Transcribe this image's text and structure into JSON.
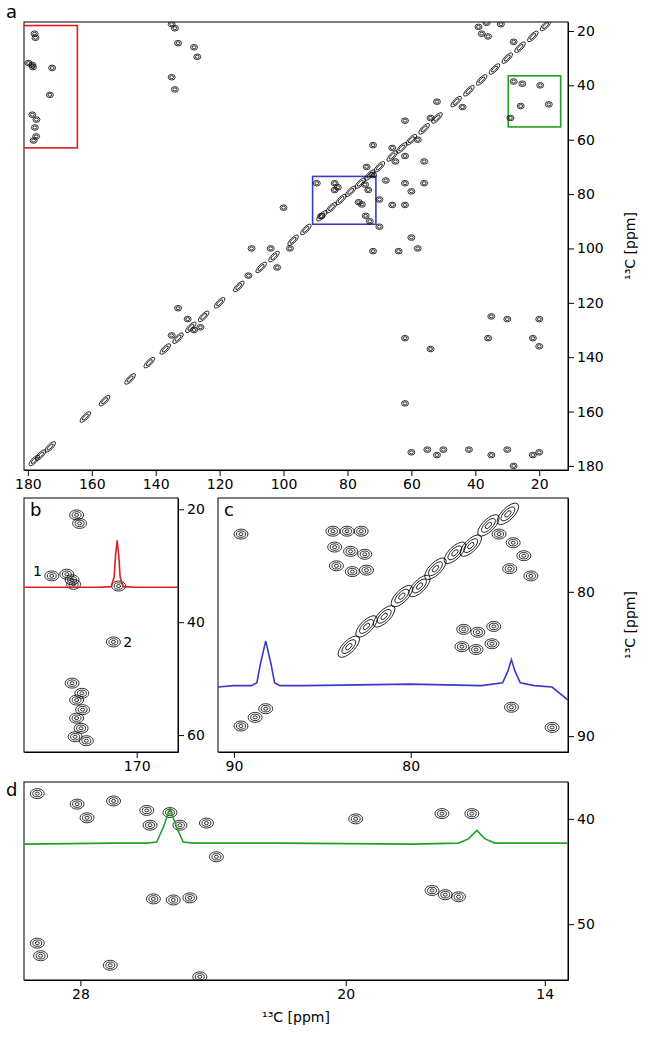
{
  "chart_data": [
    {
      "type": "contour",
      "title": "a",
      "ylabel": "¹³C [ppm]",
      "xlim": [
        181.2,
        11.0
      ],
      "ylim": [
        16.7,
        181.5
      ],
      "xticks": [
        180,
        160,
        140,
        120,
        100,
        80,
        60,
        40,
        20
      ],
      "yticks": [
        20,
        40,
        60,
        80,
        100,
        120,
        140,
        160,
        180
      ],
      "series": [
        {
          "type": "scatter",
          "marker": "contour",
          "color": "#000000",
          "x": [
            177.9,
            177.6,
            178.6,
            178.4,
            172.4,
            173.1,
            178.6,
            177.3,
            177.8,
            177.4,
            178.2,
            179.8,
            135,
            134,
            133,
            128,
            127,
            135,
            134,
            36.5,
            32,
            28,
            39,
            38,
            36,
            72,
            66,
            62,
            65,
            74,
            72,
            68,
            62,
            56,
            60,
            70,
            66,
            62,
            73,
            70,
            60,
            58,
            72,
            64,
            89.6,
            84,
            83,
            84,
            74.5,
            73.5,
            76.5,
            75.5,
            88.2,
            74.3,
            104,
            110,
            102,
            111,
            100,
            98,
            28,
            25.3,
            25.8,
            17,
            29,
            19.7,
            54,
            52,
            44,
            62,
            58,
            56,
            133,
            130,
            128,
            135,
            126,
            35,
            30,
            20,
            36,
            22,
            20,
            54,
            62,
            62,
            60,
            55,
            52,
            50,
            42,
            35,
            30,
            22,
            20,
            28
          ],
          "values": [
            21,
            22.5,
            32.5,
            33.3,
            33.6,
            43.5,
            50.8,
            52.6,
            55.5,
            58.8,
            60.3,
            31.8,
            17.5,
            19,
            24.5,
            26,
            29.5,
            37,
            41.5,
            17,
            17.5,
            24,
            18.5,
            21,
            22,
            62,
            63,
            66,
            68,
            70,
            73,
            75,
            76,
            76,
            79,
            82,
            84,
            84,
            90,
            92,
            96,
            100,
            101,
            101,
            76,
            76,
            77.5,
            78.5,
            76.5,
            78.5,
            83,
            83.8,
            88.1,
            88,
            100,
            100,
            107,
            110,
            85,
            100,
            38.6,
            39.4,
            47.6,
            47,
            52,
            40,
            52,
            46,
            48,
            53,
            60,
            68,
            122,
            126,
            130,
            132,
            129,
            125,
            126,
            126,
            133,
            133,
            136,
            137,
            133,
            157,
            175,
            174,
            176,
            174,
            174,
            176,
            174,
            176,
            175,
            180
          ]
        },
        {
          "type": "scatter",
          "marker": "ridge",
          "color": "#000000",
          "x": [
            18,
            22,
            26,
            30,
            34,
            38,
            42,
            46,
            52,
            56,
            60,
            63,
            66,
            70,
            73,
            76,
            79,
            82,
            85,
            88,
            93,
            97,
            103,
            107,
            114,
            120,
            125,
            129,
            133,
            137,
            142,
            148,
            156,
            162,
            173,
            176,
            178
          ],
          "values": [
            18,
            22,
            26,
            30,
            34,
            38,
            42,
            46,
            52,
            56,
            60,
            63,
            66,
            70,
            73,
            76,
            79,
            82,
            85,
            88,
            93,
            97,
            103,
            107,
            114,
            120,
            125,
            129,
            133,
            137,
            142,
            148,
            156,
            162,
            173,
            176,
            178
          ]
        }
      ],
      "regions": [
        {
          "color": "#e41a1c",
          "xlim": [
            185,
            164.5
          ],
          "ylim": [
            18,
            63
          ]
        },
        {
          "color": "#3a3ac8",
          "xlim": [
            90.9,
            71.1
          ],
          "ylim": [
            73.5,
            91.1
          ]
        },
        {
          "color": "#22a022",
          "xlim": [
            29.7,
            13.3
          ],
          "ylim": [
            36.5,
            55.3
          ]
        }
      ]
    },
    {
      "type": "contour",
      "title": "b",
      "xlim": [
        185,
        164.5
      ],
      "ylim": [
        18,
        63
      ],
      "xticks": [
        170
      ],
      "yticks": [
        20,
        40,
        60
      ],
      "series": [
        {
          "type": "scatter",
          "marker": "contour",
          "color": "#000000",
          "x": [
            178,
            177.6,
            179.3,
            178.6,
            178.4,
            172.4,
            173.1,
            178.6,
            177.3,
            178,
            177.2,
            178,
            177.4,
            178.2,
            176.7,
            181.3
          ],
          "values": [
            21,
            22.5,
            31.5,
            32.5,
            33.3,
            33.6,
            43.5,
            50.8,
            52.6,
            53.8,
            55.5,
            57,
            58.8,
            60.3,
            61,
            31.8
          ]
        },
        {
          "type": "line",
          "color": "#e41a1c",
          "x": [
            185,
            180,
            175,
            173.4,
            173,
            172.8,
            172.6,
            172.4,
            172.2,
            171.8,
            170,
            164.5
          ],
          "values": [
            33.8,
            33.8,
            33.8,
            33.7,
            32,
            28,
            25.5,
            28,
            32,
            33.7,
            33.8,
            33.8
          ]
        }
      ],
      "annotations": [
        {
          "text": "1",
          "x": 183.2,
          "y": 31.0
        },
        {
          "text": "2",
          "x": 171.2,
          "y": 43.5
        }
      ]
    },
    {
      "type": "contour",
      "title": "c",
      "ylabel": "¹³C [ppm]",
      "xlim": [
        90.9,
        71.1
      ],
      "ylim": [
        73.5,
        91.1
      ],
      "xticks": [
        90,
        80
      ],
      "yticks": [
        80,
        90
      ],
      "series": [
        {
          "type": "scatter",
          "marker": "contour",
          "color": "#000000",
          "x": [
            89.6,
            84.4,
            83.6,
            82.8,
            84.3,
            83.4,
            82.6,
            84.2,
            83.3,
            82.5,
            75.0,
            74.2,
            73.6,
            73.2,
            74.4,
            77.0,
            76.2,
            75.3,
            77.1,
            76.3,
            75.4,
            88.2,
            89.6,
            88.8,
            74.3,
            72.0
          ],
          "values": [
            76.0,
            75.8,
            75.8,
            75.8,
            76.9,
            77.2,
            77.4,
            78.2,
            78.6,
            78.5,
            76.0,
            76.6,
            77.5,
            78.9,
            78.4,
            82.6,
            82.8,
            82.4,
            83.8,
            84.0,
            83.6,
            88.1,
            89.3,
            88.7,
            88.0,
            89.4
          ]
        },
        {
          "type": "scatter",
          "marker": "ridge",
          "color": "#000000",
          "x": [
            83.5,
            82.5,
            81.5,
            80.5,
            79.5,
            78.6,
            77.5,
            76.6,
            75.6,
            74.5
          ],
          "values": [
            83.8,
            82.4,
            81.7,
            80.3,
            79.6,
            78.4,
            77.3,
            76.8,
            75.4,
            74.6
          ]
        },
        {
          "type": "line",
          "color": "#3a3ac8",
          "x": [
            90.9,
            90,
            89,
            88.7,
            88.5,
            88.2,
            87.9,
            87.7,
            87.4,
            86,
            80,
            76,
            74.8,
            74.5,
            74.3,
            74.1,
            73.8,
            73,
            72,
            71.1
          ],
          "values": [
            86.6,
            86.5,
            86.5,
            86.3,
            85.0,
            83.4,
            85.0,
            86.3,
            86.5,
            86.5,
            86.4,
            86.5,
            86.3,
            85.5,
            84.7,
            85.5,
            86.3,
            86.5,
            86.6,
            87.5
          ]
        }
      ]
    },
    {
      "type": "contour",
      "title": "d",
      "xlabel": "¹³C [ppm]",
      "xlim": [
        29.7,
        13.3
      ],
      "ylim": [
        36.5,
        55.3
      ],
      "xticks": [
        28,
        20,
        14
      ],
      "yticks": [
        40,
        50
      ],
      "series": [
        {
          "type": "scatter",
          "marker": "contour",
          "color": "#000000",
          "x": [
            29.3,
            28.1,
            27.8,
            27.0,
            26.0,
            25.3,
            25.0,
            25.9,
            24.2,
            19.7,
            17.1,
            16.2,
            23.9,
            25.8,
            25.2,
            24.7,
            17.4,
            17.0,
            16.6,
            29.3,
            29.2,
            27.1,
            24.4
          ],
          "values": [
            37.6,
            38.6,
            39.9,
            38.3,
            39.2,
            39.4,
            40.6,
            40.6,
            40.4,
            40.0,
            39.5,
            39.5,
            43.6,
            47.6,
            47.7,
            47.5,
            46.8,
            47.2,
            47.4,
            51.8,
            53.0,
            53.9,
            55.0
          ]
        },
        {
          "type": "line",
          "color": "#22a022",
          "x": [
            29.7,
            27,
            26,
            25.7,
            25.5,
            25.3,
            25.1,
            24.9,
            24.6,
            22,
            18,
            16.6,
            16.3,
            16.05,
            15.8,
            15.5,
            13.3
          ],
          "values": [
            42.4,
            42.3,
            42.3,
            42.2,
            40.8,
            39.0,
            40.8,
            42.2,
            42.3,
            42.3,
            42.4,
            42.3,
            41.9,
            41.1,
            41.9,
            42.3,
            42.3
          ]
        }
      ]
    }
  ]
}
